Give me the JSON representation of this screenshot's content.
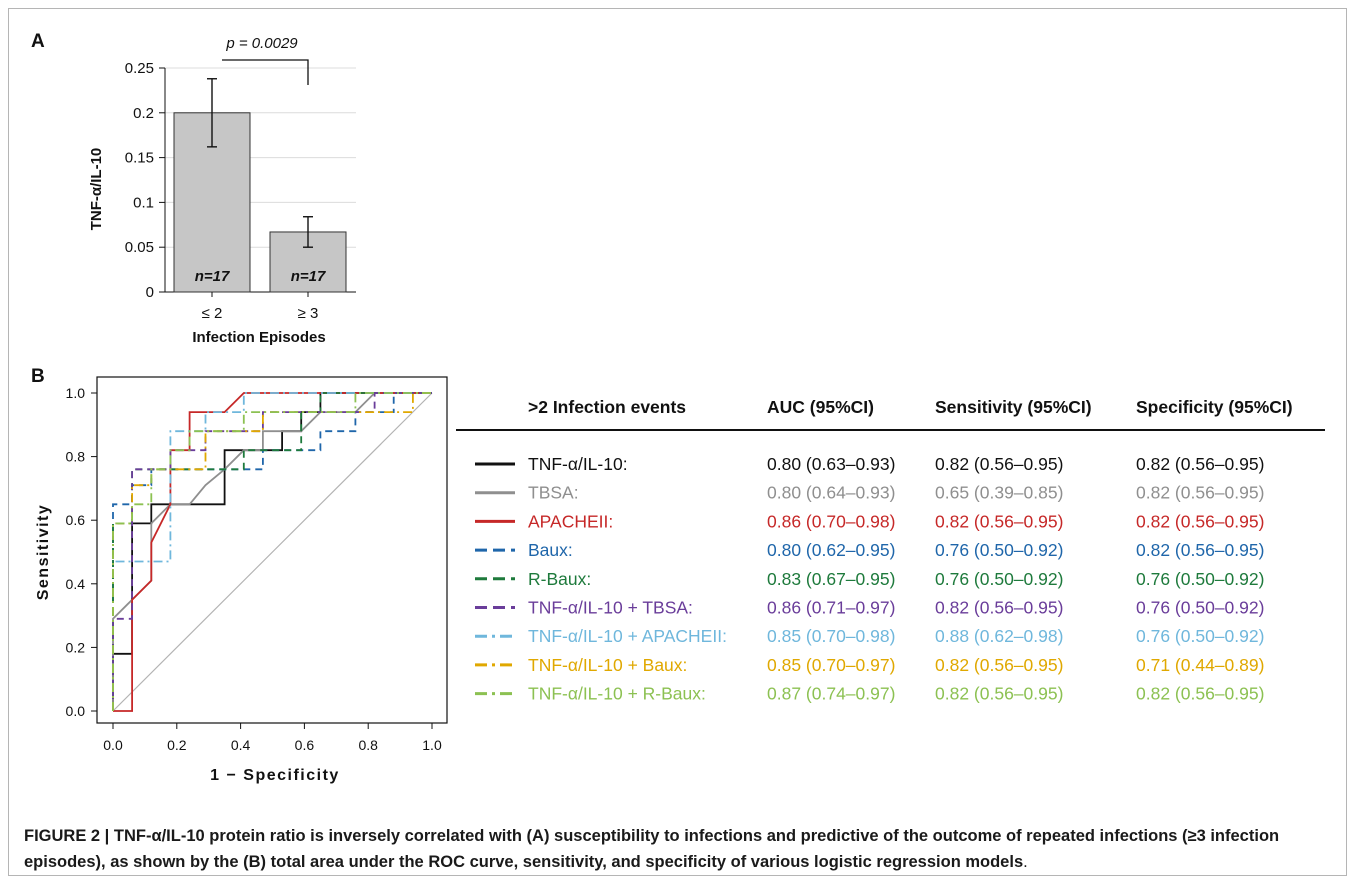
{
  "panel_labels": {
    "a": "A",
    "b": "B"
  },
  "chart_data": [
    {
      "type": "bar",
      "panel": "A",
      "categories": [
        "≤ 2",
        "≥ 3"
      ],
      "values": [
        0.2,
        0.067
      ],
      "error": [
        0.038,
        0.017
      ],
      "bar_labels": [
        "n=17",
        "n=17"
      ],
      "bar_color": "#c6c6c6",
      "ylabel": "TNF-α/IL-10",
      "xlabel": "Infection Episodes",
      "ylim": [
        0,
        0.25
      ],
      "yticks": [
        0,
        0.05,
        0.1,
        0.15,
        0.2,
        0.25
      ],
      "ytick_labels": [
        "0",
        "0.05",
        "0.1",
        "0.15",
        "0.2",
        "0.25"
      ],
      "grid": true,
      "annotation": "p = 0.0029"
    },
    {
      "type": "line",
      "panel": "B",
      "xlabel": "1 − Specificity",
      "ylabel": "Sensitivity",
      "xlim": [
        0,
        1
      ],
      "ylim": [
        0,
        1
      ],
      "xticks": [
        "0.0",
        "0.2",
        "0.4",
        "0.6",
        "0.8",
        "1.0"
      ],
      "yticks": [
        "0.0",
        "0.2",
        "0.4",
        "0.6",
        "0.8",
        "1.0"
      ],
      "diagonal": true,
      "series": [
        {
          "name": "TNF-α/IL-10:",
          "color": "#111111",
          "dash": "solid",
          "x": [
            0,
            0,
            0.06,
            0.06,
            0.12,
            0.12,
            0.18,
            0.18,
            0.35,
            0.35,
            0.53,
            0.53,
            0.59,
            0.59,
            0.65,
            0.65,
            0.88,
            0.88,
            1
          ],
          "y": [
            0,
            0.18,
            0.18,
            0.59,
            0.59,
            0.65,
            0.65,
            0.65,
            0.65,
            0.82,
            0.82,
            0.88,
            0.88,
            0.94,
            0.94,
            1,
            1,
            1,
            1
          ]
        },
        {
          "name": "TBSA:",
          "color": "#8f8f8f",
          "dash": "solid",
          "x": [
            0,
            0,
            0.06,
            0.12,
            0.12,
            0.18,
            0.24,
            0.29,
            0.35,
            0.41,
            0.47,
            0.47,
            0.53,
            0.59,
            0.65,
            0.76,
            0.82,
            0.88,
            1
          ],
          "y": [
            0,
            0.29,
            0.35,
            0.41,
            0.59,
            0.65,
            0.65,
            0.71,
            0.76,
            0.82,
            0.82,
            0.88,
            0.88,
            0.88,
            0.94,
            0.94,
            1,
            1,
            1
          ]
        },
        {
          "name": "APACHEII:",
          "color": "#c62828",
          "dash": "solid",
          "x": [
            0,
            0.06,
            0.06,
            0.12,
            0.12,
            0.18,
            0.18,
            0.24,
            0.24,
            0.35,
            0.35,
            0.41,
            1
          ],
          "y": [
            0,
            0,
            0.35,
            0.41,
            0.53,
            0.65,
            0.82,
            0.82,
            0.94,
            0.94,
            0.94,
            1,
            1
          ]
        },
        {
          "name": "Baux:",
          "color": "#1f66aa",
          "dash": "dash",
          "x": [
            0,
            0,
            0.06,
            0.06,
            0.12,
            0.12,
            0.18,
            0.18,
            0.35,
            0.35,
            0.47,
            0.47,
            0.65,
            0.65,
            0.76,
            0.76,
            0.88,
            0.88,
            1
          ],
          "y": [
            0,
            0.65,
            0.65,
            0.71,
            0.71,
            0.76,
            0.76,
            0.76,
            0.76,
            0.76,
            0.76,
            0.82,
            0.82,
            0.88,
            0.88,
            0.94,
            0.94,
            1,
            1
          ]
        },
        {
          "name": "R-Baux:",
          "color": "#1e7a3c",
          "dash": "dash",
          "x": [
            0,
            0,
            0.06,
            0.06,
            0.18,
            0.18,
            0.29,
            0.29,
            0.41,
            0.41,
            0.59,
            0.59,
            0.65,
            0.65,
            1
          ],
          "y": [
            0,
            0.59,
            0.59,
            0.76,
            0.76,
            0.76,
            0.76,
            0.76,
            0.76,
            0.82,
            0.82,
            0.94,
            0.94,
            1,
            1
          ]
        },
        {
          "name": "TNF-α/IL-10 + TBSA:",
          "color": "#6a3d9a",
          "dash": "dash",
          "x": [
            0,
            0,
            0.06,
            0.06,
            0.12,
            0.12,
            0.18,
            0.18,
            0.29,
            0.29,
            0.47,
            0.47,
            0.82,
            0.82,
            1
          ],
          "y": [
            0,
            0.29,
            0.29,
            0.76,
            0.76,
            0.76,
            0.76,
            0.82,
            0.82,
            0.88,
            0.88,
            0.94,
            0.94,
            1,
            1
          ]
        },
        {
          "name": "TNF-α/IL-10 + APACHEII:",
          "color": "#6fb7dc",
          "dash": "dashdot",
          "x": [
            0,
            0,
            0.06,
            0.06,
            0.12,
            0.18,
            0.18,
            0.29,
            0.29,
            0.41,
            0.41,
            0.47,
            0.47,
            1
          ],
          "y": [
            0,
            0.47,
            0.47,
            0.47,
            0.47,
            0.47,
            0.88,
            0.88,
            0.94,
            0.94,
            1,
            1,
            1,
            1
          ]
        },
        {
          "name": "TNF-α/IL-10 + Baux:",
          "color": "#e0a800",
          "dash": "dashdot",
          "x": [
            0,
            0,
            0.06,
            0.06,
            0.12,
            0.12,
            0.24,
            0.24,
            0.29,
            0.29,
            0.47,
            0.47,
            0.94,
            0.94,
            1
          ],
          "y": [
            0,
            0.59,
            0.59,
            0.71,
            0.71,
            0.76,
            0.76,
            0.76,
            0.76,
            0.88,
            0.88,
            0.94,
            0.94,
            1,
            1
          ]
        },
        {
          "name": "TNF-α/IL-10 + R-Baux:",
          "color": "#8cc152",
          "dash": "dashdot",
          "x": [
            0,
            0,
            0.06,
            0.06,
            0.12,
            0.12,
            0.18,
            0.18,
            0.24,
            0.24,
            0.41,
            0.41,
            0.76,
            0.76,
            1
          ],
          "y": [
            0,
            0.59,
            0.59,
            0.65,
            0.65,
            0.76,
            0.76,
            0.82,
            0.82,
            0.88,
            0.88,
            0.94,
            0.94,
            1,
            1
          ]
        }
      ]
    },
    {
      "type": "table",
      "panel": "B",
      "columns": [
        ">2 Infection events",
        "AUC (95%CI)",
        "Sensitivity (95%CI)",
        "Specificity (95%CI)"
      ],
      "rows": [
        [
          "TNF-α/IL-10:",
          "0.80 (0.63–0.93)",
          "0.82 (0.56–0.95)",
          "0.82 (0.56–0.95)"
        ],
        [
          "TBSA:",
          "0.80 (0.64–0.93)",
          "0.65 (0.39–0.85)",
          "0.82 (0.56–0.95)"
        ],
        [
          "APACHEII:",
          "0.86 (0.70–0.98)",
          "0.82 (0.56–0.95)",
          "0.82 (0.56–0.95)"
        ],
        [
          "Baux:",
          "0.80 (0.62–0.95)",
          "0.76 (0.50–0.92)",
          "0.82 (0.56–0.95)"
        ],
        [
          "R-Baux:",
          "0.83 (0.67–0.95)",
          "0.76 (0.50–0.92)",
          "0.76 (0.50–0.92)"
        ],
        [
          "TNF-α/IL-10 + TBSA:",
          "0.86 (0.71–0.97)",
          "0.82 (0.56–0.95)",
          "0.76 (0.50–0.92)"
        ],
        [
          "TNF-α/IL-10 + APACHEII:",
          "0.85 (0.70–0.98)",
          "0.88 (0.62–0.98)",
          "0.76 (0.50–0.92)"
        ],
        [
          "TNF-α/IL-10 + Baux:",
          "0.85 (0.70–0.97)",
          "0.82 (0.56–0.95)",
          "0.71 (0.44–0.89)"
        ],
        [
          "TNF-α/IL-10 + R-Baux:",
          "0.87 (0.74–0.97)",
          "0.82 (0.56–0.95)",
          "0.82 (0.56–0.95)"
        ]
      ]
    }
  ],
  "caption": {
    "prefix": "FIGURE 2 | ",
    "text": "TNF-α/IL-10 protein ratio is inversely correlated with (A) susceptibility to infections and predictive of the outcome of repeated infections (≥3 infection episodes), as shown by the (B) total area under the ROC curve, sensitivity, and specificity of various logistic regression models",
    "suffix": "."
  }
}
